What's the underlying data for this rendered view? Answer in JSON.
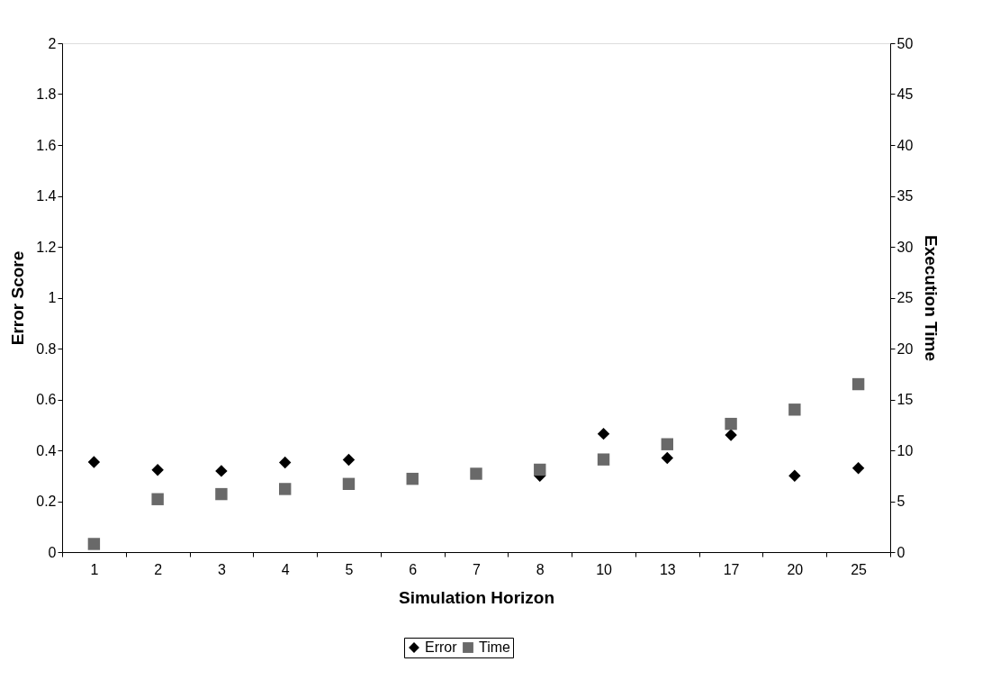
{
  "chart_data": {
    "type": "scatter",
    "xlabel": "Simulation Horizon",
    "ylabel": "Error Score",
    "y2label": "Execution Time",
    "categories": [
      "1",
      "2",
      "3",
      "4",
      "5",
      "6",
      "7",
      "8",
      "10",
      "13",
      "17",
      "20",
      "25"
    ],
    "series": [
      {
        "name": "Error",
        "color": "#000000",
        "marker": "diamond",
        "values": [
          0.354,
          0.323,
          0.319,
          0.352,
          0.363,
          null,
          null,
          0.3,
          0.465,
          0.37,
          0.46,
          0.3,
          0.33
        ]
      },
      {
        "name": "Time",
        "color": "#696969",
        "marker": "square",
        "axis": "y2",
        "values": [
          0.8,
          5.2,
          5.7,
          6.2,
          6.7,
          7.2,
          7.7,
          8.1,
          9.1,
          10.6,
          12.6,
          14.0,
          16.5
        ]
      }
    ],
    "ylim": [
      0,
      2
    ],
    "yticks": [
      0,
      0.2,
      0.4,
      0.6,
      0.8,
      1,
      1.2,
      1.4,
      1.6,
      1.8,
      2
    ],
    "y2lim": [
      0,
      50
    ],
    "y2ticks": [
      0,
      5,
      10,
      15,
      20,
      25,
      30,
      35,
      40,
      45,
      50
    ],
    "grid": false,
    "legend": "bottom"
  }
}
